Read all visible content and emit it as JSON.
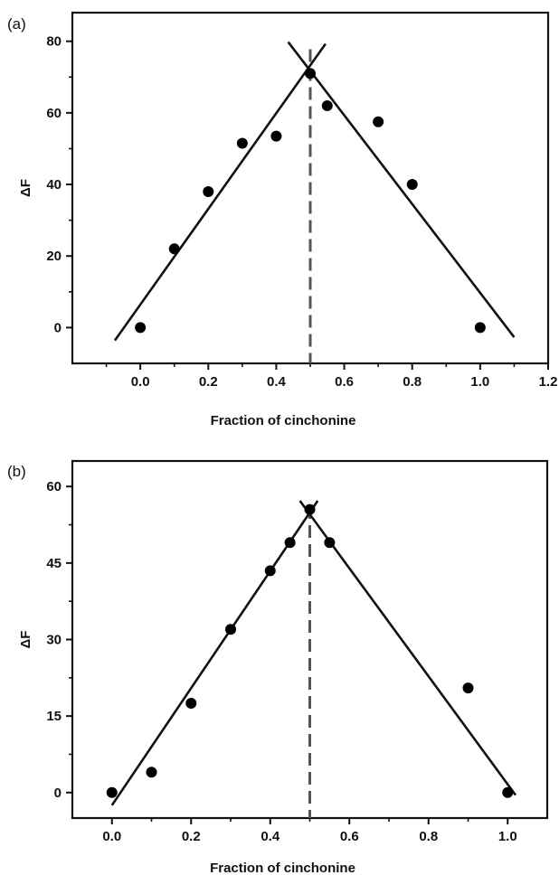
{
  "chart_data": [
    {
      "type": "scatter",
      "panel_label": "(a)",
      "title": "",
      "xlabel": "Fraction of cinchonine",
      "ylabel": "ΔF",
      "xlim": [
        -0.2,
        1.2
      ],
      "ylim": [
        -10,
        88
      ],
      "xticks": [
        0.0,
        0.2,
        0.4,
        0.6,
        0.8,
        1.0,
        1.2
      ],
      "xtick_labels": [
        "0.0",
        "0.2",
        "0.4",
        "0.6",
        "0.8",
        "1.0",
        "1.2"
      ],
      "yticks": [
        0,
        20,
        40,
        60,
        80
      ],
      "ytick_labels": [
        "0",
        "20",
        "40",
        "60",
        "80"
      ],
      "points": [
        {
          "x": 0.0,
          "y": 0
        },
        {
          "x": 0.1,
          "y": 22
        },
        {
          "x": 0.2,
          "y": 38
        },
        {
          "x": 0.3,
          "y": 51.5
        },
        {
          "x": 0.4,
          "y": 53.5
        },
        {
          "x": 0.5,
          "y": 71
        },
        {
          "x": 0.55,
          "y": 62
        },
        {
          "x": 0.7,
          "y": 57.5
        },
        {
          "x": 0.8,
          "y": 40
        },
        {
          "x": 1.0,
          "y": 0
        }
      ],
      "fit_lines": [
        {
          "x": [
            -0.075,
            0.545
          ],
          "y": [
            -3.6,
            79.3
          ]
        },
        {
          "x": [
            0.435,
            1.1
          ],
          "y": [
            79.8,
            -2.7
          ]
        }
      ],
      "vline_x": 0.5,
      "grid": false,
      "legend": "none"
    },
    {
      "type": "scatter",
      "panel_label": "(b)",
      "title": "",
      "xlabel": "Fraction of cinchonine",
      "ylabel": "ΔF",
      "xlim": [
        -0.1,
        1.1
      ],
      "ylim": [
        -5,
        65
      ],
      "xticks": [
        0.0,
        0.2,
        0.4,
        0.6,
        0.8,
        1.0
      ],
      "xtick_labels": [
        "0.0",
        "0.2",
        "0.4",
        "0.6",
        "0.8",
        "1.0"
      ],
      "yticks": [
        0,
        15,
        30,
        45,
        60
      ],
      "ytick_labels": [
        "0",
        "15",
        "30",
        "45",
        "60"
      ],
      "points": [
        {
          "x": 0.0,
          "y": 0
        },
        {
          "x": 0.1,
          "y": 4
        },
        {
          "x": 0.2,
          "y": 17.5
        },
        {
          "x": 0.3,
          "y": 32
        },
        {
          "x": 0.4,
          "y": 43.5
        },
        {
          "x": 0.45,
          "y": 49
        },
        {
          "x": 0.5,
          "y": 55.5
        },
        {
          "x": 0.55,
          "y": 49
        },
        {
          "x": 0.9,
          "y": 20.5
        },
        {
          "x": 1.0,
          "y": 0
        }
      ],
      "fit_lines": [
        {
          "x": [
            0.0,
            0.52
          ],
          "y": [
            -2.5,
            57.2
          ]
        },
        {
          "x": [
            0.475,
            1.02
          ],
          "y": [
            57.2,
            -0.5
          ]
        }
      ],
      "vline_x": 0.5,
      "grid": false,
      "legend": "none"
    }
  ]
}
